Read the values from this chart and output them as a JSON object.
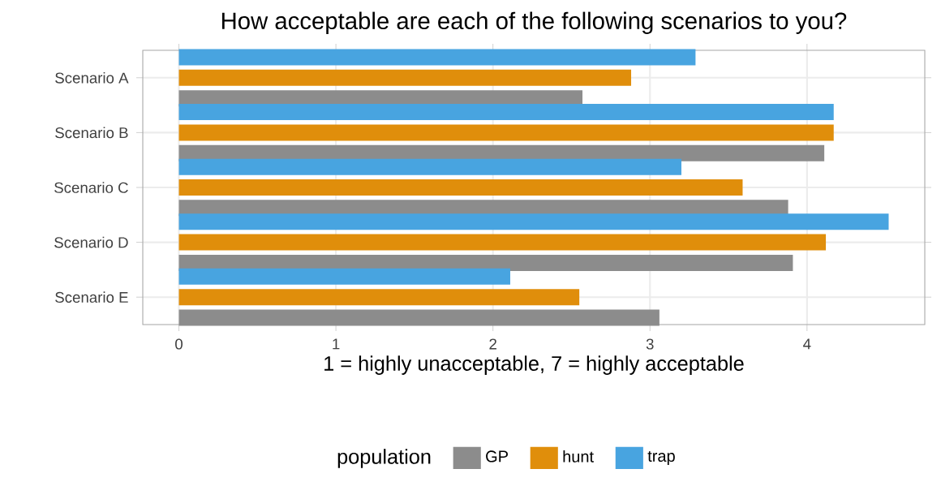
{
  "chart_data": {
    "type": "bar",
    "orientation": "horizontal",
    "title": "How acceptable are each of the following scenarios to you?",
    "xlabel": "1 = highly unacceptable, 7 = highly acceptable",
    "legend_title": "population",
    "categories": [
      "Scenario A",
      "Scenario B",
      "Scenario C",
      "Scenario D",
      "Scenario E"
    ],
    "series": [
      {
        "name": "GP",
        "color": "#8c8c8c",
        "values": [
          2.57,
          4.11,
          3.88,
          3.91,
          3.06
        ]
      },
      {
        "name": "hunt",
        "color": "#e08e0b",
        "values": [
          2.88,
          4.17,
          3.59,
          4.12,
          2.55
        ]
      },
      {
        "name": "trap",
        "color": "#48a4e0",
        "values": [
          3.29,
          4.17,
          3.2,
          4.52,
          2.11
        ]
      }
    ],
    "xlim": [
      -0.23,
      4.75
    ],
    "xticks": [
      0,
      1,
      2,
      3,
      4
    ],
    "grid": true,
    "legend": "bottom"
  }
}
